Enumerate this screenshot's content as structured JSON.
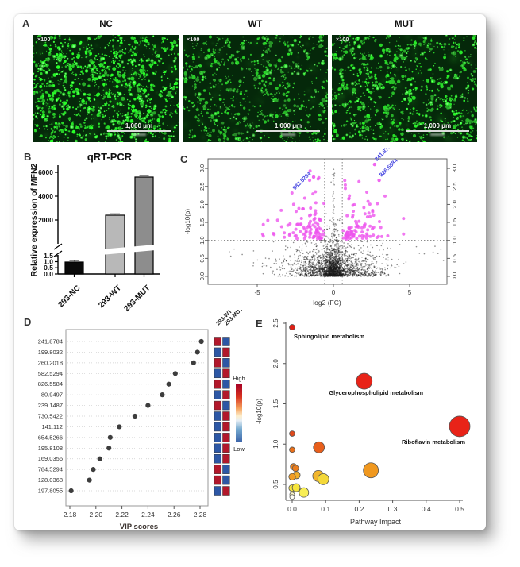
{
  "panel_labels": {
    "a": "A",
    "b": "B",
    "c": "C",
    "d": "D",
    "e": "E"
  },
  "panel_a": {
    "images": [
      {
        "title": "NC",
        "magnification": "×100",
        "scale_bar_label": "1,000 μm",
        "dot_density": 760,
        "brightness": 1.0,
        "seed": 11
      },
      {
        "title": "WT",
        "magnification": "×100",
        "scale_bar_label": "1,000 μm",
        "dot_density": 470,
        "brightness": 0.8,
        "seed": 22
      },
      {
        "title": "MUT",
        "magnification": "×100",
        "scale_bar_label": "1,000 μm",
        "dot_density": 560,
        "brightness": 0.9,
        "seed": 33
      }
    ]
  },
  "chart_data": [
    {
      "name": "qrt_pcr_bar",
      "type": "bar",
      "title": "qRT-PCR",
      "ylabel": "Relative expression of MFN2",
      "categories": [
        "293-NC",
        "293-WT",
        "293-MUT"
      ],
      "values": [
        1.0,
        2400,
        5600
      ],
      "errors": [
        0.06,
        60,
        150
      ],
      "bar_colors": [
        "#0a0a0a",
        "#b8b8b8",
        "#8d8d8d"
      ],
      "y_axis_break": true,
      "lower_tick_labels": [
        "0.0",
        "0.5",
        "1.0",
        "1.5"
      ],
      "upper_tick_labels": [
        "2000",
        "4000",
        "6000"
      ]
    },
    {
      "name": "volcano",
      "type": "scatter",
      "xlabel": "log2 (FC)",
      "ylabel": "-log10(p)",
      "xlim": [
        -8.4,
        7.3
      ],
      "ylim": [
        -0.22,
        3.27
      ],
      "xtick_labels": [
        "-5",
        "0",
        "5"
      ],
      "xticks": [
        -5,
        0,
        5
      ],
      "ytick_labels": [
        "0.0",
        "0.5",
        "1.0",
        "1.5",
        "2.0",
        "2.5",
        "3.0"
      ],
      "yticks": [
        0,
        0.5,
        1,
        1.5,
        2,
        2.5,
        3
      ],
      "threshold_y": 1.0,
      "threshold_x": [
        -0.58,
        0.58
      ],
      "sig_color": "#ee55ee",
      "ns_color": "#1a1a1a",
      "label_color": "#4444e0",
      "labeled_points": [
        {
          "label": "582.5294",
          "x": -1.3,
          "y": 2.76,
          "side": "left"
        },
        {
          "label": "241.8784",
          "x": 2.7,
          "y": 3.11,
          "side": "right"
        },
        {
          "label": "826.5584",
          "x": 3.0,
          "y": 2.67,
          "side": "right"
        }
      ],
      "background_points": {
        "seed": 7,
        "n_core": 1500,
        "sd_core": 1.7,
        "n_center": 900,
        "sd_center": 0.32,
        "n_sig": 140,
        "n_spike": 40,
        "n_outlier": 14
      }
    },
    {
      "name": "vip_scores",
      "type": "scatter",
      "xlabel": "VIP scores",
      "features": [
        "241.8784",
        "199.8032",
        "260.2018",
        "582.5294",
        "826.5584",
        "80.9497",
        "239.1487",
        "730.5422",
        "141.112",
        "654.5266",
        "195.8108",
        "169.0356",
        "784.5294",
        "128.0368",
        "197.8055"
      ],
      "vip_values": [
        2.281,
        2.278,
        2.275,
        2.261,
        2.256,
        2.251,
        2.24,
        2.23,
        2.218,
        2.211,
        2.21,
        2.203,
        2.198,
        2.195,
        2.181
      ],
      "xtick_labels": [
        "2.18",
        "2.20",
        "2.22",
        "2.24",
        "2.26",
        "2.28"
      ],
      "xticks": [
        2.18,
        2.2,
        2.22,
        2.24,
        2.26,
        2.28
      ],
      "heatmap_columns": [
        "293-WT",
        "293-MUT"
      ],
      "heatmap": [
        [
          "high",
          "low"
        ],
        [
          "low",
          "high"
        ],
        [
          "high",
          "low"
        ],
        [
          "low",
          "high"
        ],
        [
          "high",
          "low"
        ],
        [
          "low",
          "high"
        ],
        [
          "high",
          "low"
        ],
        [
          "low",
          "high"
        ],
        [
          "low",
          "high"
        ],
        [
          "low",
          "high"
        ],
        [
          "low",
          "high"
        ],
        [
          "low",
          "high"
        ],
        [
          "high",
          "low"
        ],
        [
          "high",
          "low"
        ],
        [
          "low",
          "high"
        ]
      ],
      "heat_colors": {
        "high": "#b2182b",
        "low": "#2d57a5"
      },
      "legend": {
        "high_label": "High",
        "low_label": "Low"
      }
    },
    {
      "name": "pathway_impact",
      "type": "bubble",
      "xlabel": "Pathway Impact",
      "ylabel": "-log10(p)",
      "xtick_labels": [
        "0.0",
        "0.1",
        "0.2",
        "0.3",
        "0.4",
        "0.5"
      ],
      "xticks": [
        0,
        0.1,
        0.2,
        0.3,
        0.4,
        0.5
      ],
      "ytick_labels": [
        "0.5",
        "1.0",
        "1.5",
        "2.0",
        "2.5"
      ],
      "yticks": [
        0.5,
        1,
        1.5,
        2,
        2.5
      ],
      "points": [
        {
          "x": 0.0,
          "y": 2.45,
          "r": 3.5,
          "color": "#dd2016",
          "label": "Sphingolipid metabolism"
        },
        {
          "x": 0.215,
          "y": 1.78,
          "r": 10,
          "color": "#e82318",
          "label": "Glycerophospholipid metabolism"
        },
        {
          "x": 0.5,
          "y": 1.22,
          "r": 13,
          "color": "#e82318",
          "label": "Riboflavin metabolism"
        },
        {
          "x": 0.0,
          "y": 1.13,
          "r": 3.4,
          "color": "#df4a1c"
        },
        {
          "x": 0.08,
          "y": 0.96,
          "r": 7,
          "color": "#e85f1c"
        },
        {
          "x": 0.0,
          "y": 0.93,
          "r": 3.4,
          "color": "#ea701a"
        },
        {
          "x": 0.004,
          "y": 0.72,
          "r": 4,
          "color": "#ec8420"
        },
        {
          "x": 0.01,
          "y": 0.7,
          "r": 4,
          "color": "#ea7d1e"
        },
        {
          "x": 0.013,
          "y": 0.615,
          "r": 4.6,
          "color": "#f2ae29"
        },
        {
          "x": 0.0,
          "y": 0.595,
          "r": 4.2,
          "color": "#f09c26"
        },
        {
          "x": 0.078,
          "y": 0.605,
          "r": 7,
          "color": "#f2b62c"
        },
        {
          "x": 0.093,
          "y": 0.565,
          "r": 7,
          "color": "#f4d839"
        },
        {
          "x": 0.235,
          "y": 0.675,
          "r": 9.5,
          "color": "#f0981f"
        },
        {
          "x": 0.0,
          "y": 0.455,
          "r": 4.2,
          "color": "#f6e53c"
        },
        {
          "x": 0.012,
          "y": 0.46,
          "r": 5,
          "color": "#f6e53c"
        },
        {
          "x": 0.035,
          "y": 0.4,
          "r": 6,
          "color": "#f8ee56"
        },
        {
          "x": 0.0,
          "y": 0.375,
          "r": 3,
          "color": "#fbf6c8"
        },
        {
          "x": 0.0,
          "y": 0.345,
          "r": 3,
          "color": "#fdfdf4"
        }
      ]
    }
  ]
}
